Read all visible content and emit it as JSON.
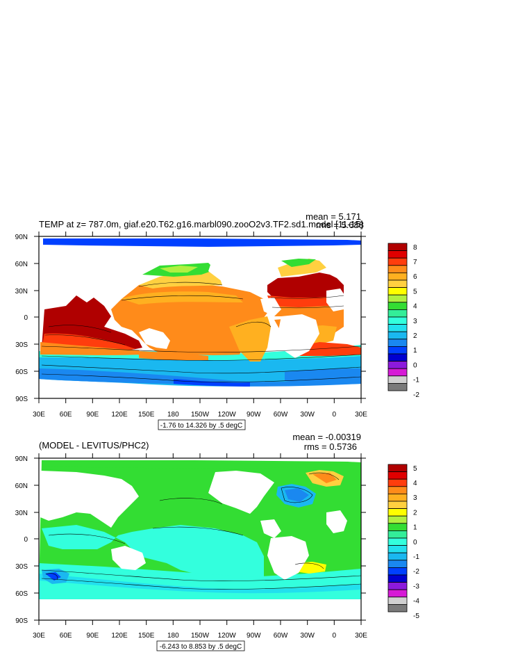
{
  "panels": [
    {
      "title": "TEMP at z= 787.0m, giaf.e20.T62.g16.marbl090.zooO2v3.TF2.sd1.model [11-15]",
      "mean": "mean = 5.171",
      "rms": "rms = 5.688",
      "contour_info": "-1.76 to 14.326 by .5 degC"
    },
    {
      "title": "(MODEL - LEVITUS/PHC2)",
      "mean": "mean = -0.00319",
      "rms": "rms = 0.5736",
      "contour_info": "-6.243 to 8.853 by .5 degC"
    }
  ],
  "chart_data": [
    {
      "type": "heatmap",
      "title": "TEMP at z= 787.0m, giaf.e20.T62.g16.marbl090.zooO2v3.TF2.sd1.model [11-15]",
      "x_ticks": [
        "30E",
        "60E",
        "90E",
        "120E",
        "150E",
        "180",
        "150W",
        "120W",
        "90W",
        "60W",
        "30W",
        "0",
        "30E"
      ],
      "y_ticks": [
        "90N",
        "60N",
        "30N",
        "0",
        "30S",
        "60S",
        "90S"
      ],
      "colorbar_labels": [
        "8",
        "7",
        "6",
        "5",
        "4",
        "3",
        "2",
        "1",
        "0",
        "-1",
        "-2"
      ],
      "colorbar_colors": [
        "#b00000",
        "#e00000",
        "#ff3d0d",
        "#ff8b1a",
        "#ffb020",
        "#ffd040",
        "#ffff00",
        "#b0f040",
        "#33dd33",
        "#33ee99",
        "#33ffdd",
        "#22e0ee",
        "#1ab8f0",
        "#1a88f0",
        "#0040ff",
        "#0000d0",
        "#8c1adc",
        "#d61ad6",
        "#d0d0d0",
        "#7a7a7a"
      ],
      "stats": {
        "mean": 5.171,
        "rms": 5.688
      },
      "contour_range": [
        -1.76,
        14.326
      ],
      "contour_interval": 0.5,
      "units": "degC"
    },
    {
      "type": "heatmap",
      "title": "(MODEL - LEVITUS/PHC2)",
      "x_ticks": [
        "30E",
        "60E",
        "90E",
        "120E",
        "150E",
        "180",
        "150W",
        "120W",
        "90W",
        "60W",
        "30W",
        "0",
        "30E"
      ],
      "y_ticks": [
        "90N",
        "60N",
        "30N",
        "0",
        "30S",
        "60S",
        "90S"
      ],
      "colorbar_labels": [
        "5",
        "4",
        "3",
        "2",
        "1",
        "0",
        "-1",
        "-2",
        "-3",
        "-4",
        "-5"
      ],
      "colorbar_colors": [
        "#b00000",
        "#e00000",
        "#ff3d0d",
        "#ff8b1a",
        "#ffb020",
        "#ffd040",
        "#ffff00",
        "#b0f040",
        "#33dd33",
        "#33ee99",
        "#33ffdd",
        "#22e0ee",
        "#1ab8f0",
        "#1a88f0",
        "#0040ff",
        "#0000d0",
        "#8c1adc",
        "#d61ad6",
        "#d0d0d0",
        "#7a7a7a"
      ],
      "stats": {
        "mean": -0.00319,
        "rms": 0.5736
      },
      "contour_range": [
        -6.243,
        8.853
      ],
      "contour_interval": 0.5,
      "units": "degC"
    }
  ]
}
